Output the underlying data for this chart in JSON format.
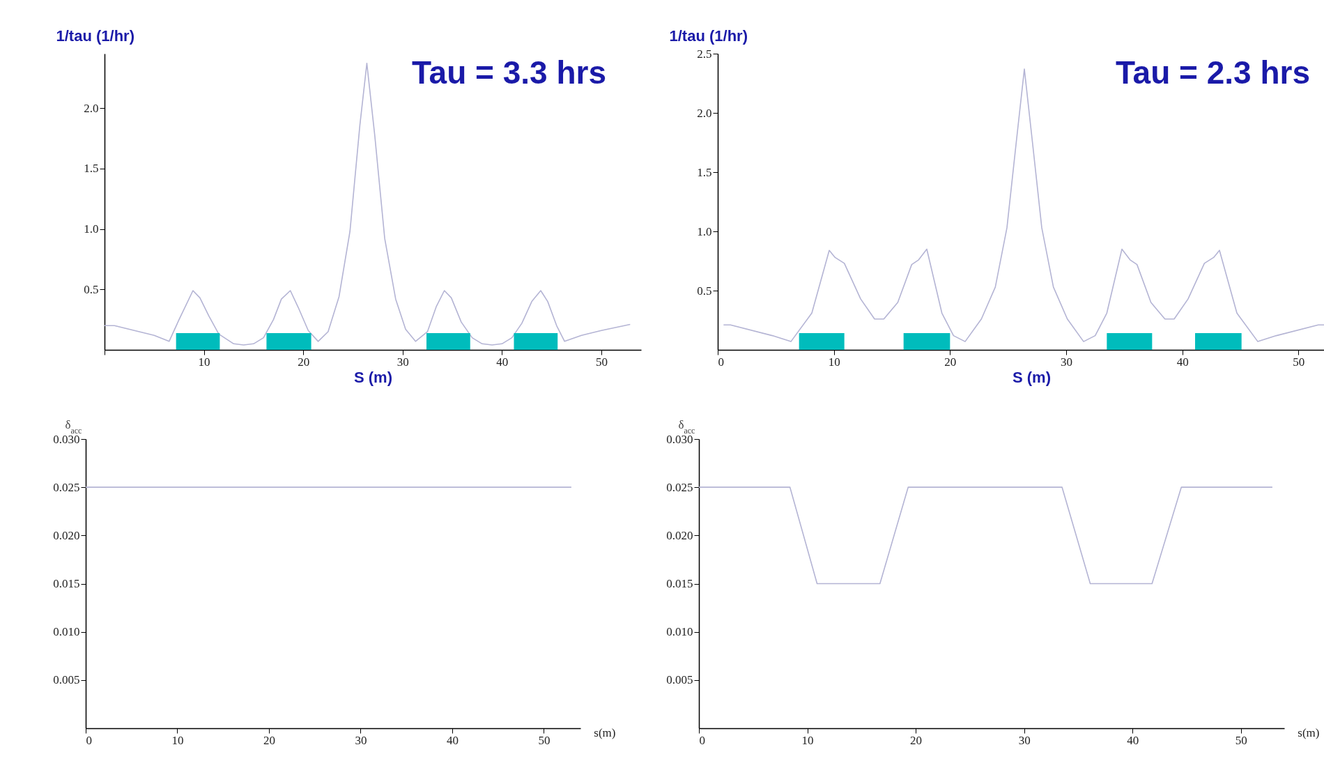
{
  "chart_data": [
    {
      "type": "line",
      "title": "Tau = 3.3 hrs",
      "xlabel": "S (m)",
      "ylabel": "1/tau (1/hr)",
      "xlim": [
        0,
        54
      ],
      "ylim": [
        0,
        2.45
      ],
      "xticks": [
        {
          "value": 0,
          "label": null
        },
        10,
        20,
        30,
        40,
        50
      ],
      "yticks": [
        0.5,
        {
          "value": 1,
          "label": "1.0"
        },
        1.5,
        {
          "value": 2,
          "label": "2.0"
        }
      ],
      "x": [
        0,
        1,
        3,
        5,
        6.5,
        7.5,
        8.9,
        9.6,
        10.5,
        11.5,
        13,
        14,
        15,
        16,
        17,
        17.8,
        18.7,
        19.5,
        20.5,
        21.5,
        22.5,
        23.6,
        24.7,
        25.7,
        26.4,
        27.2,
        28.2,
        29.3,
        30.3,
        31.3,
        32.5,
        33.4,
        34.2,
        34.9,
        35.9,
        37,
        38,
        39,
        40,
        41,
        42,
        43,
        43.9,
        44.6,
        45.5,
        46.3,
        48,
        50,
        52.9
      ],
      "series": [
        {
          "color": "#b4b4d4",
          "values": [
            0.2,
            0.2,
            0.16,
            0.12,
            0.07,
            0.25,
            0.49,
            0.43,
            0.28,
            0.13,
            0.05,
            0.04,
            0.05,
            0.1,
            0.25,
            0.42,
            0.49,
            0.35,
            0.16,
            0.07,
            0.15,
            0.44,
            0.98,
            1.86,
            2.37,
            1.77,
            0.92,
            0.42,
            0.17,
            0.07,
            0.15,
            0.36,
            0.49,
            0.43,
            0.23,
            0.1,
            0.05,
            0.04,
            0.05,
            0.1,
            0.22,
            0.4,
            0.49,
            0.4,
            0.2,
            0.07,
            0.12,
            0.16,
            0.21
          ]
        }
      ],
      "bands": [
        {
          "axis": "x",
          "from": 7.2,
          "to": 11.6,
          "color": "#00bcbc"
        },
        {
          "axis": "x",
          "from": 16.3,
          "to": 20.8,
          "color": "#00bcbc"
        },
        {
          "axis": "x",
          "from": 32.4,
          "to": 36.8,
          "color": "#00bcbc"
        },
        {
          "axis": "x",
          "from": 41.2,
          "to": 45.6,
          "color": "#00bcbc"
        }
      ]
    },
    {
      "type": "line",
      "title": "Tau = 2.3 hrs",
      "xlabel": "S (m)",
      "ylabel": "1/tau (1/hr)",
      "xlim": [
        0,
        54
      ],
      "ylim": [
        0,
        2.5
      ],
      "xticks": [
        0,
        10,
        20,
        30,
        40,
        50
      ],
      "yticks": [
        0.5,
        {
          "value": 1,
          "label": "1.0"
        },
        1.5,
        {
          "value": 2,
          "label": "2.0"
        },
        2.5
      ],
      "x": [
        0.5,
        1.1,
        4.7,
        6.3,
        8.1,
        9.6,
        10.1,
        10.9,
        12.3,
        13.5,
        14.3,
        15.5,
        16.7,
        17.3,
        18.0,
        19.3,
        20.3,
        21.3,
        22.7,
        23.9,
        24.9,
        25.7,
        26.4,
        27.1,
        27.9,
        28.9,
        30.1,
        31.5,
        32.5,
        33.5,
        34.8,
        35.5,
        36.1,
        37.3,
        38.5,
        39.3,
        40.5,
        41.9,
        42.7,
        43.2,
        44.7,
        46.5,
        48.1,
        51.7,
        52.3
      ],
      "series": [
        {
          "color": "#b4b4d4",
          "values": [
            0.21,
            0.21,
            0.12,
            0.07,
            0.31,
            0.84,
            0.78,
            0.73,
            0.43,
            0.26,
            0.26,
            0.4,
            0.72,
            0.76,
            0.85,
            0.31,
            0.12,
            0.07,
            0.26,
            0.53,
            1.03,
            1.75,
            2.37,
            1.75,
            1.03,
            0.53,
            0.26,
            0.07,
            0.12,
            0.31,
            0.85,
            0.76,
            0.72,
            0.4,
            0.26,
            0.26,
            0.43,
            0.73,
            0.78,
            0.84,
            0.31,
            0.07,
            0.12,
            0.21,
            0.21
          ]
        }
      ],
      "bands": [
        {
          "axis": "x",
          "from": 7.0,
          "to": 10.9,
          "color": "#00bcbc"
        },
        {
          "axis": "x",
          "from": 16.0,
          "to": 20.0,
          "color": "#00bcbc"
        },
        {
          "axis": "x",
          "from": 33.5,
          "to": 37.4,
          "color": "#00bcbc"
        },
        {
          "axis": "x",
          "from": 41.1,
          "to": 45.1,
          "color": "#00bcbc"
        }
      ]
    },
    {
      "type": "line",
      "xlabel": "s(m)",
      "ylabel": "δ$_{acc}$",
      "xlim": [
        0,
        54
      ],
      "ylim": [
        0,
        0.03
      ],
      "xticks": [
        0,
        10,
        20,
        30,
        40,
        50
      ],
      "yticks": [
        0.005,
        {
          "value": 0.01,
          "label": "0.010"
        },
        0.015,
        {
          "value": 0.02,
          "label": "0.020"
        },
        0.025,
        {
          "value": 0.03,
          "label": "0.030"
        }
      ],
      "x": [
        0,
        53
      ],
      "series": [
        {
          "color": "#b4b4d4",
          "values": [
            0.025,
            0.025
          ]
        }
      ]
    },
    {
      "type": "line",
      "xlabel": "s(m)",
      "ylabel": "δ$_{acc}$",
      "xlim": [
        0,
        54
      ],
      "ylim": [
        0,
        0.03
      ],
      "xticks": [
        0,
        10,
        20,
        30,
        40,
        50
      ],
      "yticks": [
        0.005,
        {
          "value": 0.01,
          "label": "0.010"
        },
        0.015,
        {
          "value": 0.02,
          "label": "0.020"
        },
        0.025,
        {
          "value": 0.03,
          "label": "0.030"
        }
      ],
      "x": [
        0,
        8.4,
        10.9,
        16.7,
        19.3,
        33.5,
        36.1,
        41.8,
        44.5,
        52.9
      ],
      "series": [
        {
          "color": "#b4b4d4",
          "values": [
            0.025,
            0.025,
            0.015,
            0.015,
            0.025,
            0.025,
            0.015,
            0.015,
            0.025,
            0.025
          ]
        }
      ]
    }
  ]
}
